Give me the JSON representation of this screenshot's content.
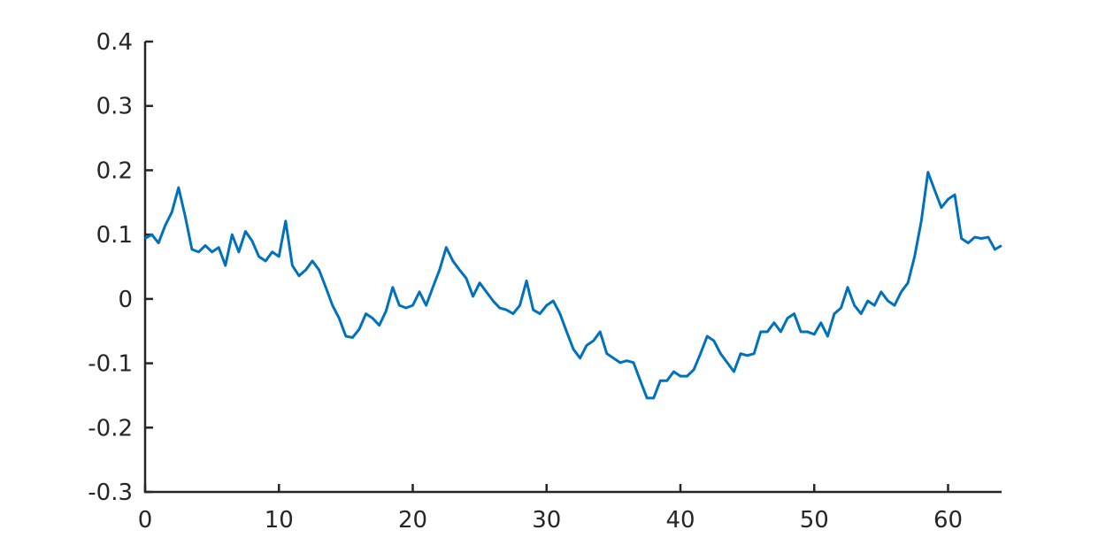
{
  "chart_data": {
    "type": "line",
    "x": [
      0,
      0.5,
      1,
      1.5,
      2,
      2.5,
      3,
      3.5,
      4,
      4.5,
      5,
      5.5,
      6,
      6.5,
      7,
      7.5,
      8,
      8.5,
      9,
      9.5,
      10,
      10.5,
      11,
      11.5,
      12,
      12.5,
      13,
      13.5,
      14,
      14.5,
      15,
      15.5,
      16,
      16.5,
      17,
      17.5,
      18,
      18.5,
      19,
      19.5,
      20,
      20.5,
      21,
      21.5,
      22,
      22.5,
      23,
      23.5,
      24,
      24.5,
      25,
      25.5,
      26,
      26.5,
      27,
      27.5,
      28,
      28.5,
      29,
      29.5,
      30,
      30.5,
      31,
      31.5,
      32,
      32.5,
      33,
      33.5,
      34,
      34.5,
      35,
      35.5,
      36,
      36.5,
      37,
      37.5,
      38,
      38.5,
      39,
      39.5,
      40,
      40.5,
      41,
      41.5,
      42,
      42.5,
      43,
      43.5,
      44,
      44.5,
      45,
      45.5,
      46,
      46.5,
      47,
      47.5,
      48,
      48.5,
      49,
      49.5,
      50,
      50.5,
      51,
      51.5,
      52,
      52.5,
      53,
      53.5,
      54,
      54.5,
      55,
      55.5,
      56,
      56.5,
      57,
      57.5,
      58,
      58.5,
      59,
      59.5,
      60,
      60.5,
      61,
      61.5,
      62,
      62.5,
      63,
      63.5,
      64
    ],
    "series": [
      {
        "color": "#0072bd",
        "values": [
          0.094,
          0.1,
          0.087,
          0.114,
          0.135,
          0.173,
          0.128,
          0.077,
          0.073,
          0.083,
          0.073,
          0.08,
          0.052,
          0.1,
          0.073,
          0.105,
          0.09,
          0.066,
          0.059,
          0.073,
          0.066,
          0.121,
          0.052,
          0.036,
          0.045,
          0.059,
          0.045,
          0.018,
          -0.01,
          -0.03,
          -0.058,
          -0.06,
          -0.047,
          -0.023,
          -0.03,
          -0.041,
          -0.019,
          0.018,
          -0.01,
          -0.014,
          -0.01,
          0.011,
          -0.01,
          0.018,
          0.045,
          0.08,
          0.059,
          0.045,
          0.032,
          0.004,
          0.025,
          0.011,
          -0.003,
          -0.014,
          -0.017,
          -0.023,
          -0.01,
          0.028,
          -0.017,
          -0.023,
          -0.01,
          -0.003,
          -0.023,
          -0.051,
          -0.078,
          -0.092,
          -0.072,
          -0.065,
          -0.051,
          -0.085,
          -0.092,
          -0.099,
          -0.096,
          -0.099,
          -0.127,
          -0.154,
          -0.154,
          -0.127,
          -0.127,
          -0.113,
          -0.12,
          -0.12,
          -0.11,
          -0.085,
          -0.058,
          -0.065,
          -0.085,
          -0.099,
          -0.113,
          -0.085,
          -0.088,
          -0.085,
          -0.051,
          -0.051,
          -0.037,
          -0.051,
          -0.03,
          -0.023,
          -0.051,
          -0.051,
          -0.055,
          -0.037,
          -0.058,
          -0.023,
          -0.014,
          0.018,
          -0.01,
          -0.023,
          -0.003,
          -0.01,
          0.011,
          -0.003,
          -0.01,
          0.011,
          0.025,
          0.066,
          0.121,
          0.197,
          0.169,
          0.142,
          0.155,
          0.162,
          0.094,
          0.087,
          0.096,
          0.094,
          0.096,
          0.077,
          0.083
        ]
      }
    ],
    "xlim": [
      0,
      64
    ],
    "xticks": [
      0,
      10,
      20,
      30,
      40,
      50,
      60
    ],
    "ylim": [
      -0.3,
      0.4
    ],
    "yticks": [
      -0.3,
      -0.2,
      -0.1,
      0,
      0.1,
      0.2,
      0.3,
      0.4
    ],
    "grid": false
  }
}
